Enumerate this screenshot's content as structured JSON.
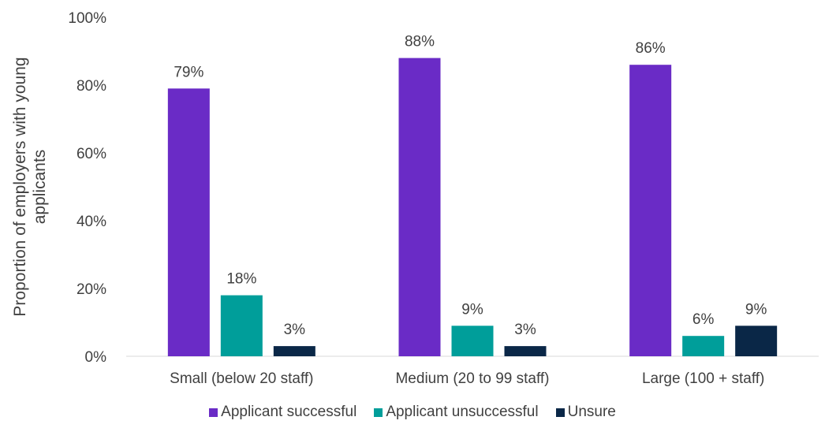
{
  "chart_data": {
    "type": "bar",
    "title": "",
    "xlabel": "",
    "ylabel": "Proportion of employers with young applicants",
    "ylim": [
      0,
      100
    ],
    "yticks": [
      "0%",
      "20%",
      "40%",
      "60%",
      "80%",
      "100%"
    ],
    "grid": false,
    "legend_position": "bottom",
    "categories": [
      "Small (below 20 staff)",
      "Medium (20 to 99 staff)",
      "Large (100 + staff)"
    ],
    "series": [
      {
        "name": "Applicant successful",
        "color": "#6a2bc6",
        "values": [
          79,
          88,
          86
        ],
        "labels": [
          "79%",
          "88%",
          "86%"
        ]
      },
      {
        "name": "Applicant unsuccessful",
        "color": "#009e9a",
        "values": [
          18,
          9,
          6
        ],
        "labels": [
          "18%",
          "9%",
          "6%"
        ]
      },
      {
        "name": "Unsure",
        "color": "#0a2747",
        "values": [
          3,
          3,
          9
        ],
        "labels": [
          "3%",
          "3%",
          "9%"
        ]
      }
    ]
  }
}
